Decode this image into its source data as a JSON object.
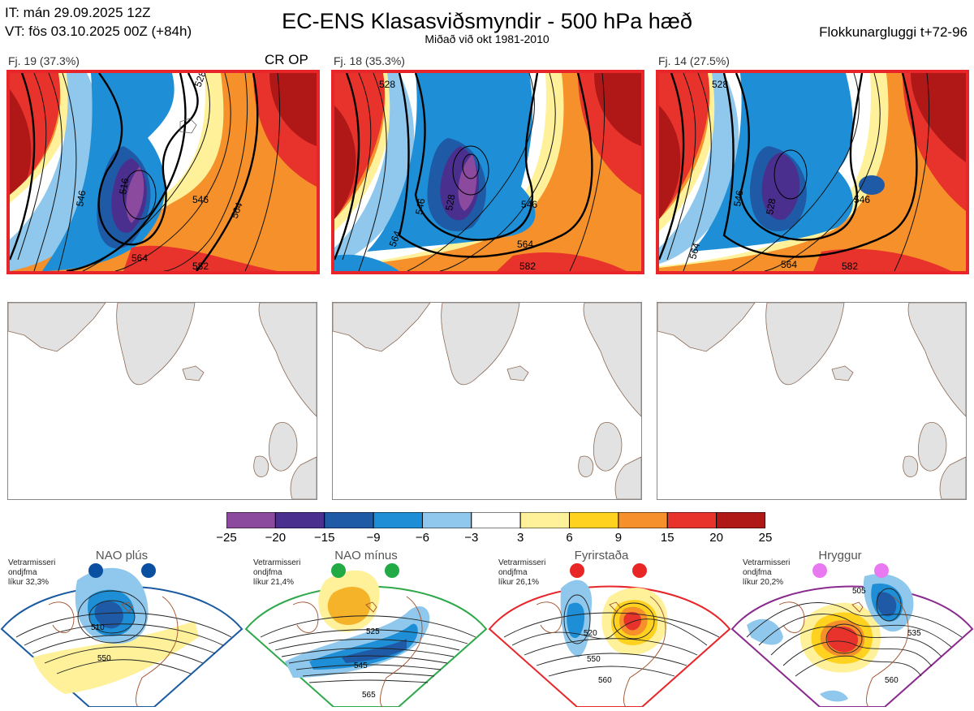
{
  "header": {
    "it_line": "IT: mán 29.09.2025 12Z",
    "vt_line": "VT: fös 03.10.2025 00Z  (+84h)",
    "title": "EC-ENS Klasasviðsmyndir - 500 hPa hæð",
    "subtitle": "Miðað við okt 1981-2010",
    "window_label": "Flokkunargluggi t+72-96"
  },
  "clusters": [
    {
      "label": "Fj. 19 (37.3%)",
      "members": 19,
      "percent": 37.3,
      "tag": "CR OP",
      "contours": [
        "516",
        "528",
        "546",
        "546",
        "564",
        "564",
        "582"
      ]
    },
    {
      "label": "Fj. 18 (35.3%)",
      "members": 18,
      "percent": 35.3,
      "tag": "",
      "contours": [
        "528",
        "528",
        "546",
        "546",
        "564",
        "564",
        "582"
      ]
    },
    {
      "label": "Fj. 14 (27.5%)",
      "members": 14,
      "percent": 27.5,
      "tag": "",
      "contours": [
        "528",
        "528",
        "546",
        "546",
        "564",
        "564",
        "582"
      ]
    }
  ],
  "colorbar": {
    "ticks": [
      "−25",
      "−20",
      "−15",
      "−9",
      "−6",
      "−3",
      "3",
      "6",
      "9",
      "15",
      "20",
      "25"
    ],
    "colors": [
      "#8b4a9e",
      "#4a2f8f",
      "#1f5aa6",
      "#1e8fd6",
      "#8fc8ec",
      "#ffffff",
      "#fff19a",
      "#ffd21f",
      "#f5902a",
      "#e8322c",
      "#b01818"
    ]
  },
  "regimes": [
    {
      "name": "NAO plús",
      "note": [
        "Vetrarmisseri",
        "ondjfma",
        "líkur 32,3%"
      ],
      "probability": 32.3,
      "frame_color": "#1a5aa0",
      "dot_color": "#0b4fa0",
      "contours": [
        "510",
        "550"
      ]
    },
    {
      "name": "NAO mínus",
      "note": [
        "Vetrarmisseri",
        "ondjfma",
        "líkur 21,4%"
      ],
      "probability": 21.4,
      "frame_color": "#2ea84a",
      "dot_color": "#22aa44",
      "contours": [
        "525",
        "545",
        "565"
      ]
    },
    {
      "name": "Fyrirstaða",
      "note": [
        "Vetrarmisseri",
        "ondjfma",
        "líkur 26,1%"
      ],
      "probability": 26.1,
      "frame_color": "#e8262a",
      "dot_color": "#e82626",
      "contours": [
        "520",
        "550",
        "560"
      ]
    },
    {
      "name": "Hryggur",
      "note": [
        "Vetrarmisseri",
        "ondjfma",
        "líkur 20,2%"
      ],
      "probability": 20.2,
      "frame_color": "#8a2a8e",
      "dot_color": "#e879f0",
      "contours": [
        "505",
        "535",
        "560"
      ]
    }
  ]
}
